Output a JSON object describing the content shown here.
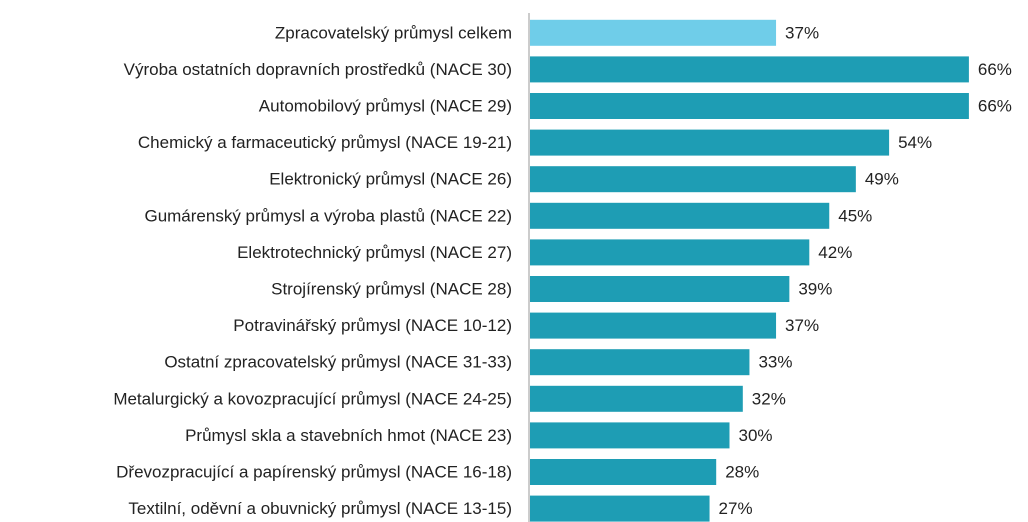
{
  "chart_data": {
    "type": "bar",
    "orientation": "horizontal",
    "categories": [
      "Zpracovatelský průmysl celkem",
      "Výroba ostatních dopravních prostředků (NACE 30)",
      "Automobilový průmysl (NACE 29)",
      "Chemický a farmaceutický průmysl (NACE 19-21)",
      "Elektronický průmysl (NACE 26)",
      "Gumárenský průmysl a výroba plastů (NACE 22)",
      "Elektrotechnický průmysl (NACE 27)",
      "Strojírenský průmysl (NACE 28)",
      "Potravinářský průmysl (NACE 10-12)",
      "Ostatní zpracovatelský průmysl (NACE 31-33)",
      "Metalurgický a kovozpracující průmysl (NACE 24-25)",
      "Průmysl skla a stavebních hmot (NACE 23)",
      "Dřevozpracující a papírenský průmysl (NACE 16-18)",
      "Textilní, oděvní a obuvnický průmysl (NACE 13-15)"
    ],
    "values": [
      37,
      66,
      66,
      54,
      49,
      45,
      42,
      39,
      37,
      33,
      32,
      30,
      28,
      27
    ],
    "value_labels": [
      "37%",
      "66%",
      "66%",
      "54%",
      "49%",
      "45%",
      "42%",
      "39%",
      "37%",
      "33%",
      "32%",
      "30%",
      "28%",
      "27%"
    ],
    "colors": [
      "#6fcde9",
      "#1e9db4",
      "#1e9db4",
      "#1e9db4",
      "#1e9db4",
      "#1e9db4",
      "#1e9db4",
      "#1e9db4",
      "#1e9db4",
      "#1e9db4",
      "#1e9db4",
      "#1e9db4",
      "#1e9db4",
      "#1e9db4"
    ]
  }
}
